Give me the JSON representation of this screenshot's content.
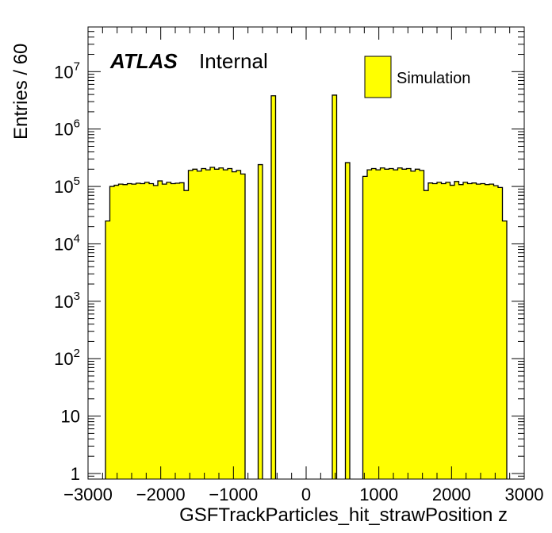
{
  "chart_data": {
    "type": "bar",
    "xlabel": "GSFTrackParticles_hit_strawPosition z",
    "ylabel": "Entries / 60",
    "xlim": [
      -3000,
      3000
    ],
    "ylim": [
      0.8,
      60000000
    ],
    "yscale": "log",
    "bin_width": 60,
    "x_ticks": [
      {
        "value": -3000,
        "label": "−3000"
      },
      {
        "value": -2000,
        "label": "−2000"
      },
      {
        "value": -1000,
        "label": "−1000"
      },
      {
        "value": 0,
        "label": "0"
      },
      {
        "value": 1000,
        "label": "1000"
      },
      {
        "value": 2000,
        "label": "2000"
      },
      {
        "value": 3000,
        "label": "3000"
      }
    ],
    "y_ticks": [
      {
        "value": 1,
        "base": "1",
        "exp": ""
      },
      {
        "value": 10,
        "base": "10",
        "exp": ""
      },
      {
        "value": 100,
        "base": "10",
        "exp": "2"
      },
      {
        "value": 1000,
        "base": "10",
        "exp": "3"
      },
      {
        "value": 10000,
        "base": "10",
        "exp": "4"
      },
      {
        "value": 100000,
        "base": "10",
        "exp": "5"
      },
      {
        "value": 1000000,
        "base": "10",
        "exp": "6"
      },
      {
        "value": 10000000,
        "base": "10",
        "exp": "7"
      }
    ],
    "atlas_label": "ATLAS",
    "status_label": "Internal",
    "legend": {
      "position": "top-right",
      "entries": [
        {
          "name": "Simulation",
          "color": "#ffff00"
        }
      ]
    },
    "series": [
      {
        "name": "Simulation",
        "color": "#ffff00",
        "edge_color": "#000000",
        "bins": [
          [
            -2760,
            25000
          ],
          [
            -2700,
            100000
          ],
          [
            -2640,
            105000
          ],
          [
            -2580,
            110000
          ],
          [
            -2520,
            108000
          ],
          [
            -2460,
            112000
          ],
          [
            -2400,
            110000
          ],
          [
            -2340,
            114000
          ],
          [
            -2280,
            112000
          ],
          [
            -2220,
            118000
          ],
          [
            -2160,
            112000
          ],
          [
            -2100,
            104000
          ],
          [
            -2040,
            125000
          ],
          [
            -1980,
            110000
          ],
          [
            -1920,
            118000
          ],
          [
            -1860,
            112000
          ],
          [
            -1800,
            114000
          ],
          [
            -1740,
            116000
          ],
          [
            -1680,
            85000
          ],
          [
            -1620,
            190000
          ],
          [
            -1560,
            200000
          ],
          [
            -1500,
            185000
          ],
          [
            -1440,
            205000
          ],
          [
            -1380,
            195000
          ],
          [
            -1320,
            215000
          ],
          [
            -1260,
            200000
          ],
          [
            -1200,
            210000
          ],
          [
            -1140,
            195000
          ],
          [
            -1080,
            205000
          ],
          [
            -1020,
            180000
          ],
          [
            -960,
            190000
          ],
          [
            -900,
            165000
          ],
          [
            -660,
            240000
          ],
          [
            -480,
            3800000
          ],
          [
            360,
            3900000
          ],
          [
            540,
            260000
          ],
          [
            780,
            150000
          ],
          [
            840,
            195000
          ],
          [
            900,
            205000
          ],
          [
            960,
            195000
          ],
          [
            1020,
            210000
          ],
          [
            1080,
            200000
          ],
          [
            1140,
            205000
          ],
          [
            1200,
            195000
          ],
          [
            1260,
            210000
          ],
          [
            1320,
            200000
          ],
          [
            1380,
            205000
          ],
          [
            1440,
            185000
          ],
          [
            1500,
            200000
          ],
          [
            1560,
            190000
          ],
          [
            1620,
            85000
          ],
          [
            1680,
            115000
          ],
          [
            1740,
            112000
          ],
          [
            1800,
            118000
          ],
          [
            1860,
            112000
          ],
          [
            1920,
            118000
          ],
          [
            1980,
            105000
          ],
          [
            2040,
            122000
          ],
          [
            2100,
            108000
          ],
          [
            2160,
            118000
          ],
          [
            2220,
            112000
          ],
          [
            2280,
            115000
          ],
          [
            2340,
            110000
          ],
          [
            2400,
            112000
          ],
          [
            2460,
            108000
          ],
          [
            2520,
            110000
          ],
          [
            2580,
            103000
          ],
          [
            2640,
            96000
          ],
          [
            2700,
            25000
          ]
        ]
      }
    ]
  }
}
